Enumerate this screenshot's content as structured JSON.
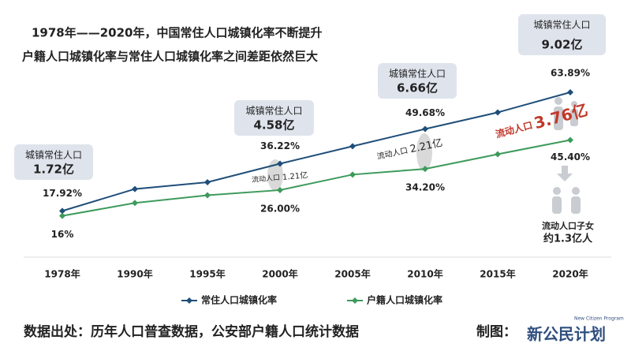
{
  "chart_data": {
    "type": "line",
    "title": "1978年——2020年，中国常住人口城镇化率不断提升",
    "subtitle": "户籍人口城镇化率与常住人口城镇化率之间差距依然巨大",
    "categories": [
      "1978年",
      "1990年",
      "1995年",
      "2000年",
      "2005年",
      "2010年",
      "2015年",
      "2020年"
    ],
    "series": [
      {
        "name": "常住人口城镇化率",
        "color": "#1f4e79",
        "values": [
          17.92,
          26.41,
          29.04,
          36.22,
          42.99,
          49.68,
          56.1,
          63.89
        ],
        "value_labels": [
          "17.92%",
          null,
          null,
          "36.22%",
          null,
          "49.68%",
          null,
          "63.89%"
        ]
      },
      {
        "name": "户籍人口城镇化率",
        "color": "#3d9a5b",
        "values": [
          16,
          21,
          24,
          26,
          32,
          34.2,
          39.9,
          45.4
        ],
        "value_labels": [
          "16%",
          null,
          null,
          "26.00%",
          null,
          "34.20%",
          null,
          "45.40%"
        ]
      }
    ],
    "ylim": [
      0,
      70
    ],
    "legend": "bottom",
    "annotations": [
      {
        "title": "城镇常住人口",
        "value": "1.72亿"
      },
      {
        "title": "城镇常住人口",
        "value": "4.58亿"
      },
      {
        "title": "城镇常住人口",
        "value": "6.66亿"
      },
      {
        "title": "城镇常住人口",
        "value": "9.02亿"
      }
    ],
    "floating": [
      {
        "label": "流动人口",
        "value": "1.21亿"
      },
      {
        "label": "流动人口",
        "value": "2.21亿"
      },
      {
        "label": "流动人口",
        "value": "3.76亿"
      }
    ],
    "children": {
      "label": "流动人口子女",
      "value": "约1.3亿人"
    },
    "source": "数据出处：历年人口普查数据，公安部户籍人口统计数据",
    "credit": "制图：",
    "logo": "新公民计划",
    "logo_en": "New Citizen Program"
  }
}
